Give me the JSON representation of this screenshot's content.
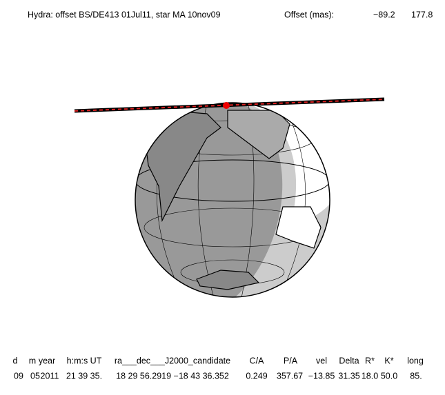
{
  "header": {
    "title": "Hydra: offset BS/DE413 01Jul11, star MA 10nov09",
    "offset_label": "Offset (mas):",
    "offset_values": [
      "−89.2",
      "177.8"
    ]
  },
  "table": {
    "columns": [
      "d",
      "m",
      "year",
      "h:m:s UT",
      "ra___dec___J2000_candidate",
      "C/A",
      "P/A",
      "vel",
      "Delta",
      "R*",
      "K*",
      "long"
    ],
    "rows": [
      [
        "09",
        "05",
        "2011",
        "21 39 35.",
        "18 29 56.2919 −18 43 36.352",
        "0.249",
        "357.67",
        "−13.85",
        "31.35",
        "18.0",
        "50.0",
        "85."
      ]
    ]
  }
}
